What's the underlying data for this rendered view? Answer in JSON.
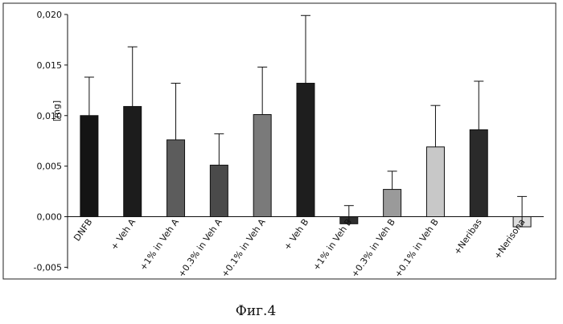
{
  "chart_data": {
    "type": "bar",
    "title": "",
    "xlabel": "",
    "ylabel": "[mg]",
    "ylim": [
      -0.006,
      0.02
    ],
    "yticks": [
      "-0,005",
      "0,000",
      "0,005",
      "0,010",
      "0,015",
      "0,020"
    ],
    "ytick_values": [
      -0.005,
      0.0,
      0.005,
      0.01,
      0.015,
      0.02
    ],
    "grid": false,
    "legend": "none",
    "categories": [
      "DNFB",
      "+ Veh A",
      "+1% in Veh A",
      "+0.3% in Veh A",
      "+0.1% in Veh A",
      "+ Veh B",
      "+1% in Veh B",
      "+0.3% in Veh B",
      "+0.1% in Veh B",
      "+Neribas",
      "+Nerisona"
    ],
    "values": [
      0.01,
      0.0109,
      0.0076,
      0.0051,
      0.0101,
      0.0132,
      -0.0007,
      0.0027,
      0.0069,
      0.0086,
      -0.001
    ],
    "errors": [
      0.0038,
      0.0059,
      0.0056,
      0.0031,
      0.0047,
      0.0067,
      0.0018,
      0.0018,
      0.0041,
      0.0048,
      0.003
    ],
    "bar_colors": [
      "#141414",
      "#1c1c1c",
      "#5c5c5c",
      "#4a4a4a",
      "#7a7a7a",
      "#1e1e1e",
      "#2e2e2e",
      "#9a9a9a",
      "#c8c8c8",
      "#2a2a2a",
      "#dddddd"
    ],
    "caption": "Фиг.4"
  }
}
